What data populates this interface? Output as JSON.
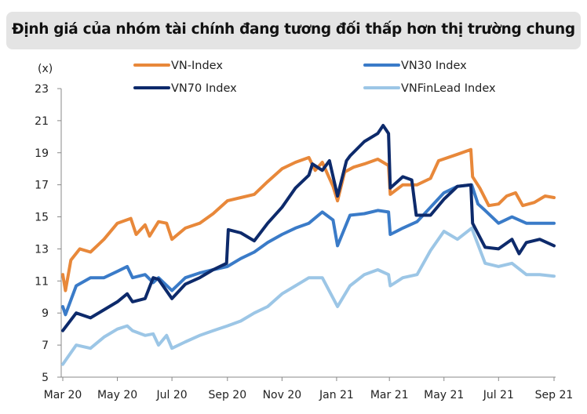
{
  "chart_data": {
    "type": "line",
    "title": "Định giá của nhóm tài chính đang tương đối thấp hơn thị trường chung",
    "ylabel": "(x)",
    "xlabel": "",
    "ylim": [
      5,
      23
    ],
    "yticks": [
      5,
      7,
      9,
      11,
      13,
      15,
      17,
      19,
      21,
      23
    ],
    "xlim": [
      "2020-03-01",
      "2021-09-01"
    ],
    "xticks": [
      {
        "date": "2020-03-01",
        "label": "Mar 20"
      },
      {
        "date": "2020-05-01",
        "label": "May 20"
      },
      {
        "date": "2020-07-01",
        "label": "Jul 20"
      },
      {
        "date": "2020-09-01",
        "label": "Sep 20"
      },
      {
        "date": "2020-11-01",
        "label": "Nov 20"
      },
      {
        "date": "2021-01-01",
        "label": "Jan 21"
      },
      {
        "date": "2021-03-01",
        "label": "Mar 21"
      },
      {
        "date": "2021-05-01",
        "label": "May 21"
      },
      {
        "date": "2021-07-01",
        "label": "Jul 21"
      },
      {
        "date": "2021-09-01",
        "label": "Sep 21"
      }
    ],
    "grid": false,
    "legend_placement": "top",
    "series": [
      {
        "name": "VN-Index",
        "color": "#e8883a",
        "points": [
          [
            "2020-03-01",
            11.4
          ],
          [
            "2020-03-04",
            10.4
          ],
          [
            "2020-03-10",
            12.3
          ],
          [
            "2020-03-20",
            13.0
          ],
          [
            "2020-04-01",
            12.8
          ],
          [
            "2020-04-16",
            13.6
          ],
          [
            "2020-05-01",
            14.6
          ],
          [
            "2020-05-16",
            14.9
          ],
          [
            "2020-05-22",
            13.9
          ],
          [
            "2020-06-01",
            14.5
          ],
          [
            "2020-06-06",
            13.8
          ],
          [
            "2020-06-16",
            14.7
          ],
          [
            "2020-06-25",
            14.6
          ],
          [
            "2020-07-01",
            13.6
          ],
          [
            "2020-07-16",
            14.3
          ],
          [
            "2020-08-01",
            14.6
          ],
          [
            "2020-08-16",
            15.2
          ],
          [
            "2020-09-01",
            16.0
          ],
          [
            "2020-09-16",
            16.2
          ],
          [
            "2020-10-01",
            16.4
          ],
          [
            "2020-10-16",
            17.2
          ],
          [
            "2020-11-01",
            18.0
          ],
          [
            "2020-11-16",
            18.4
          ],
          [
            "2020-12-01",
            18.7
          ],
          [
            "2020-12-08",
            17.9
          ],
          [
            "2020-12-16",
            18.4
          ],
          [
            "2020-12-28",
            16.9
          ],
          [
            "2021-01-02",
            16.0
          ],
          [
            "2021-01-10",
            17.8
          ],
          [
            "2021-01-20",
            18.1
          ],
          [
            "2021-02-01",
            18.3
          ],
          [
            "2021-02-16",
            18.6
          ],
          [
            "2021-02-28",
            18.2
          ],
          [
            "2021-03-02",
            16.4
          ],
          [
            "2021-03-16",
            17.0
          ],
          [
            "2021-04-01",
            17.0
          ],
          [
            "2021-04-16",
            17.4
          ],
          [
            "2021-04-25",
            18.5
          ],
          [
            "2021-05-16",
            18.9
          ],
          [
            "2021-05-31",
            19.2
          ],
          [
            "2021-06-02",
            17.5
          ],
          [
            "2021-06-10",
            16.8
          ],
          [
            "2021-06-20",
            15.7
          ],
          [
            "2021-07-01",
            15.8
          ],
          [
            "2021-07-10",
            16.3
          ],
          [
            "2021-07-20",
            16.5
          ],
          [
            "2021-07-28",
            15.7
          ],
          [
            "2021-08-10",
            15.9
          ],
          [
            "2021-08-22",
            16.3
          ],
          [
            "2021-09-01",
            16.2
          ]
        ]
      },
      {
        "name": "VN30 Index",
        "color": "#3a7bc8",
        "points": [
          [
            "2020-03-01",
            9.4
          ],
          [
            "2020-03-04",
            8.9
          ],
          [
            "2020-03-16",
            10.7
          ],
          [
            "2020-04-01",
            11.2
          ],
          [
            "2020-04-16",
            11.2
          ],
          [
            "2020-05-01",
            11.6
          ],
          [
            "2020-05-12",
            11.9
          ],
          [
            "2020-05-18",
            11.2
          ],
          [
            "2020-06-01",
            11.4
          ],
          [
            "2020-06-10",
            10.9
          ],
          [
            "2020-06-16",
            11.2
          ],
          [
            "2020-07-01",
            10.4
          ],
          [
            "2020-07-16",
            11.2
          ],
          [
            "2020-08-01",
            11.5
          ],
          [
            "2020-08-16",
            11.7
          ],
          [
            "2020-09-01",
            11.9
          ],
          [
            "2020-09-16",
            12.4
          ],
          [
            "2020-10-01",
            12.8
          ],
          [
            "2020-10-16",
            13.4
          ],
          [
            "2020-11-01",
            13.9
          ],
          [
            "2020-11-16",
            14.3
          ],
          [
            "2020-12-01",
            14.6
          ],
          [
            "2020-12-16",
            15.3
          ],
          [
            "2020-12-28",
            14.8
          ],
          [
            "2021-01-02",
            13.2
          ],
          [
            "2021-01-16",
            15.1
          ],
          [
            "2021-02-01",
            15.2
          ],
          [
            "2021-02-16",
            15.4
          ],
          [
            "2021-02-28",
            15.3
          ],
          [
            "2021-03-02",
            13.9
          ],
          [
            "2021-03-16",
            14.3
          ],
          [
            "2021-04-01",
            14.7
          ],
          [
            "2021-04-16",
            15.6
          ],
          [
            "2021-05-01",
            16.5
          ],
          [
            "2021-05-16",
            16.9
          ],
          [
            "2021-06-01",
            17.0
          ],
          [
            "2021-06-08",
            15.8
          ],
          [
            "2021-06-16",
            15.4
          ],
          [
            "2021-07-01",
            14.6
          ],
          [
            "2021-07-16",
            15.0
          ],
          [
            "2021-08-01",
            14.6
          ],
          [
            "2021-08-16",
            14.6
          ],
          [
            "2021-09-01",
            14.6
          ]
        ]
      },
      {
        "name": "VN70 Index",
        "color": "#0d2a6b",
        "points": [
          [
            "2020-03-01",
            7.9
          ],
          [
            "2020-03-16",
            9.0
          ],
          [
            "2020-04-01",
            8.7
          ],
          [
            "2020-04-16",
            9.2
          ],
          [
            "2020-05-01",
            9.7
          ],
          [
            "2020-05-12",
            10.2
          ],
          [
            "2020-05-18",
            9.7
          ],
          [
            "2020-06-01",
            9.9
          ],
          [
            "2020-06-10",
            11.2
          ],
          [
            "2020-06-16",
            11.1
          ],
          [
            "2020-07-01",
            9.9
          ],
          [
            "2020-07-16",
            10.8
          ],
          [
            "2020-08-01",
            11.2
          ],
          [
            "2020-08-16",
            11.7
          ],
          [
            "2020-08-31",
            12.1
          ],
          [
            "2020-09-02",
            14.2
          ],
          [
            "2020-09-16",
            14.0
          ],
          [
            "2020-10-01",
            13.5
          ],
          [
            "2020-10-16",
            14.6
          ],
          [
            "2020-11-01",
            15.6
          ],
          [
            "2020-11-16",
            16.8
          ],
          [
            "2020-12-01",
            17.6
          ],
          [
            "2020-12-05",
            18.3
          ],
          [
            "2020-12-16",
            17.9
          ],
          [
            "2020-12-24",
            18.5
          ],
          [
            "2021-01-02",
            16.3
          ],
          [
            "2021-01-12",
            18.5
          ],
          [
            "2021-01-16",
            18.8
          ],
          [
            "2021-02-01",
            19.7
          ],
          [
            "2021-02-16",
            20.2
          ],
          [
            "2021-02-22",
            20.7
          ],
          [
            "2021-02-28",
            20.2
          ],
          [
            "2021-03-02",
            16.8
          ],
          [
            "2021-03-16",
            17.5
          ],
          [
            "2021-03-26",
            17.3
          ],
          [
            "2021-03-31",
            15.1
          ],
          [
            "2021-04-16",
            15.1
          ],
          [
            "2021-05-01",
            16.1
          ],
          [
            "2021-05-16",
            16.9
          ],
          [
            "2021-05-31",
            17.0
          ],
          [
            "2021-06-02",
            14.6
          ],
          [
            "2021-06-16",
            13.1
          ],
          [
            "2021-07-01",
            13.0
          ],
          [
            "2021-07-16",
            13.6
          ],
          [
            "2021-07-24",
            12.7
          ],
          [
            "2021-08-01",
            13.4
          ],
          [
            "2021-08-16",
            13.6
          ],
          [
            "2021-09-01",
            13.2
          ]
        ]
      },
      {
        "name": "VNFinLead Index",
        "color": "#9cc6e6",
        "points": [
          [
            "2020-03-01",
            5.8
          ],
          [
            "2020-03-16",
            7.0
          ],
          [
            "2020-04-01",
            6.8
          ],
          [
            "2020-04-16",
            7.5
          ],
          [
            "2020-05-01",
            8.0
          ],
          [
            "2020-05-12",
            8.2
          ],
          [
            "2020-05-18",
            7.9
          ],
          [
            "2020-06-01",
            7.6
          ],
          [
            "2020-06-10",
            7.7
          ],
          [
            "2020-06-16",
            7.0
          ],
          [
            "2020-06-25",
            7.6
          ],
          [
            "2020-07-01",
            6.8
          ],
          [
            "2020-07-16",
            7.2
          ],
          [
            "2020-08-01",
            7.6
          ],
          [
            "2020-08-16",
            7.9
          ],
          [
            "2020-09-01",
            8.2
          ],
          [
            "2020-09-16",
            8.5
          ],
          [
            "2020-10-01",
            9.0
          ],
          [
            "2020-10-16",
            9.4
          ],
          [
            "2020-11-01",
            10.2
          ],
          [
            "2020-11-16",
            10.7
          ],
          [
            "2020-12-01",
            11.2
          ],
          [
            "2020-12-16",
            11.2
          ],
          [
            "2021-01-02",
            9.4
          ],
          [
            "2021-01-16",
            10.7
          ],
          [
            "2021-02-01",
            11.4
          ],
          [
            "2021-02-16",
            11.7
          ],
          [
            "2021-02-28",
            11.4
          ],
          [
            "2021-03-02",
            10.7
          ],
          [
            "2021-03-16",
            11.2
          ],
          [
            "2021-04-01",
            11.4
          ],
          [
            "2021-04-16",
            12.9
          ],
          [
            "2021-05-01",
            14.1
          ],
          [
            "2021-05-16",
            13.6
          ],
          [
            "2021-06-01",
            14.3
          ],
          [
            "2021-06-16",
            12.1
          ],
          [
            "2021-07-01",
            11.9
          ],
          [
            "2021-07-16",
            12.1
          ],
          [
            "2021-08-01",
            11.4
          ],
          [
            "2021-08-16",
            11.4
          ],
          [
            "2021-09-01",
            11.3
          ]
        ]
      }
    ]
  }
}
